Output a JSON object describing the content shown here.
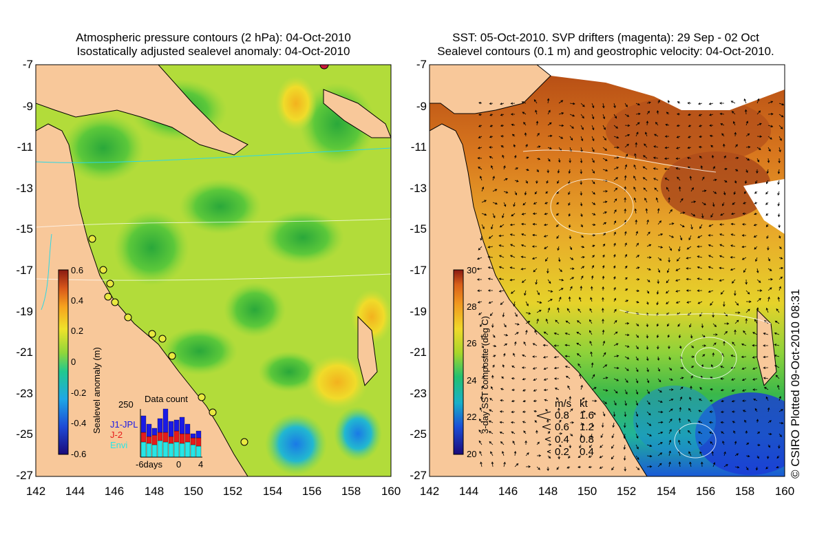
{
  "left_panel": {
    "title_line1": "Atmospheric pressure contours (2 hPa): 04-Oct-2010",
    "title_line2": "Isostatically adjusted sealevel anomaly: 04-Oct-2010",
    "colorbar": {
      "label": "Sealevel anomaly (m)",
      "ticks": [
        "0.6",
        "0.4",
        "0.2",
        "0",
        "-0.2",
        "-0.4",
        "-0.6"
      ],
      "colors": [
        "#1a0a7a",
        "#1f4ad6",
        "#1fa7e6",
        "#22c98e",
        "#2fbf3a",
        "#9ad62a",
        "#f0e22a",
        "#f6a31e",
        "#d9581a",
        "#8a1a12"
      ]
    },
    "inset": {
      "title": "Data count",
      "ymax": "250",
      "legend": [
        {
          "name": "J1-JPL",
          "color": "#1a1ae6"
        },
        {
          "name": "J-2",
          "color": "#e61a1a"
        },
        {
          "name": "Envi",
          "color": "#26e6e6"
        }
      ],
      "xlabels": [
        "-6days",
        "0",
        "4"
      ]
    }
  },
  "right_panel": {
    "title_line1": "SST: 05-Oct-2010. SVP drifters (magenta): 29 Sep - 02 Oct",
    "title_line2": "Sealevel contours (0.1 m) and geostrophic velocity: 04-Oct-2010.",
    "colorbar": {
      "label": "3-day SST composite (deg C)",
      "ticks": [
        "30",
        "28",
        "26",
        "24",
        "22",
        "20"
      ],
      "colors": [
        "#1a0a7a",
        "#1a4ed6",
        "#18b0c8",
        "#22c070",
        "#3ac02a",
        "#a8d62a",
        "#f0d82a",
        "#f0961e",
        "#d9601a",
        "#8a1a12"
      ]
    },
    "velocity_legend": {
      "col1": "m/s",
      "col2": "kt",
      "rows": [
        {
          "ms": "0.8",
          "kt": "1.6"
        },
        {
          "ms": "0.6",
          "kt": "1.2"
        },
        {
          "ms": "0.4",
          "kt": "0.8"
        },
        {
          "ms": "0.2",
          "kt": "0.4"
        }
      ]
    }
  },
  "axes": {
    "y_ticks": [
      "-7",
      "-9",
      "-11",
      "-13",
      "-15",
      "-17",
      "-19",
      "-21",
      "-23",
      "-25",
      "-27"
    ],
    "x_ticks": [
      "142",
      "144",
      "146",
      "148",
      "150",
      "152",
      "154",
      "156",
      "158",
      "160"
    ]
  },
  "credit": "© CSIRO Plotted 09-Oct-2010 08:31",
  "colors": {
    "land": "#f8c89a",
    "sst_warm": "#d9701e",
    "sst_mid": "#e6b02a",
    "sla_base": "#b0dc3a"
  }
}
